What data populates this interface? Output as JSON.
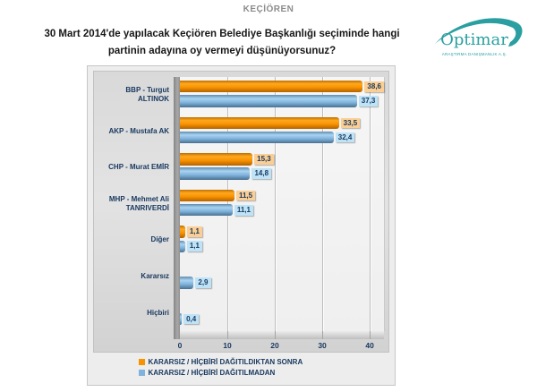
{
  "header": {
    "region": "KEÇİÖREN",
    "title_line1": "30 Mart 2014'de yapılacak Keçiören  Belediye Başkanlığı seçiminde hangi",
    "title_line2": "partinin  adayına oy vermeyi düşünüyorsunuz?"
  },
  "logo": {
    "name": "Optimar",
    "subtitle": "ARAŞTIRMA DANIŞMANLIK A.Ş.",
    "brand_color": "#2a9fa1"
  },
  "chart_data": {
    "type": "bar",
    "orientation": "horizontal",
    "title": "30 Mart 2014'de yapılacak Keçiören Belediye Başkanlığı seçiminde hangi partinin adayına oy vermeyi düşünüyorsunuz?",
    "categories": [
      "BBP - Turgut\nALTINOK",
      "AKP - Mustafa AK",
      "CHP - Murat EMİR",
      "MHP - Mehmet Ali\nTANRIVERDİ",
      "Diğer",
      "Kararsız",
      "Hiçbiri"
    ],
    "series": [
      {
        "name": "KARARSIZ / HİÇBİRİ DAĞITILDIKTAN SONRA",
        "color": "#f79200",
        "label_bg": "#fbce93",
        "values": [
          38.6,
          33.5,
          15.3,
          11.5,
          1.1,
          null,
          null
        ],
        "labels": [
          "38,6",
          "33,5",
          "15,3",
          "11,5",
          "1,1",
          null,
          null
        ]
      },
      {
        "name": "KARARSIZ / HİÇBİRİ DAĞITILMADAN",
        "color": "#7fb2dc",
        "label_bg": "#bee3f7",
        "values": [
          37.3,
          32.4,
          14.8,
          11.1,
          1.1,
          2.9,
          0.4
        ],
        "labels": [
          "37,3",
          "32,4",
          "14,8",
          "11,1",
          "1,1",
          "2,9",
          "0,4"
        ]
      }
    ],
    "xlim": [
      0,
      40
    ],
    "x_ticks": [
      0,
      10,
      20,
      30,
      40
    ],
    "axis_display_max": 43,
    "grid": true,
    "legend_position": "bottom"
  }
}
